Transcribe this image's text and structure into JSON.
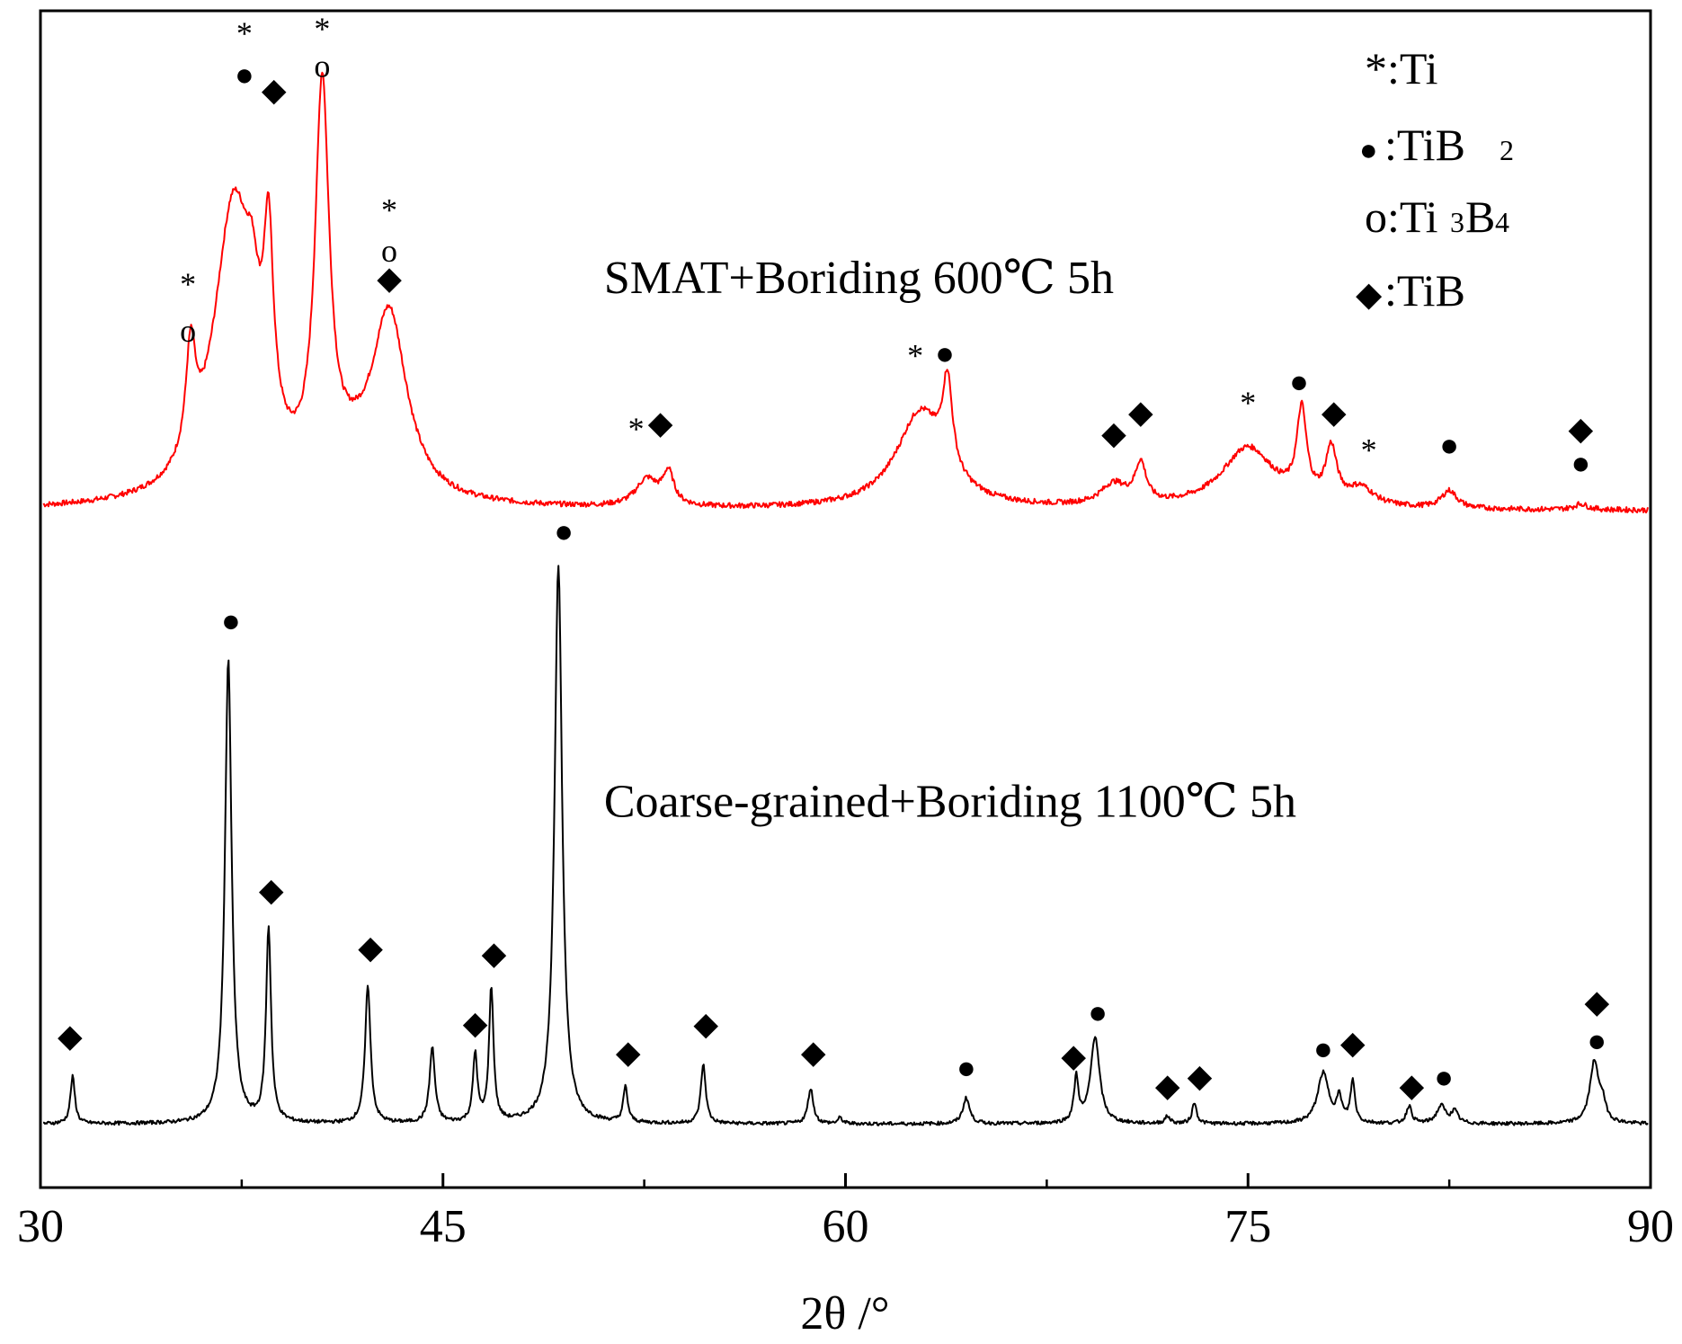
{
  "chart_data": {
    "type": "line",
    "xlabel": "2θ /°",
    "ylabel": "",
    "xlim": [
      30,
      90
    ],
    "ylim": [
      0,
      100
    ],
    "x_ticks": [
      30,
      45,
      60,
      75,
      90
    ],
    "x_tick_labels": [
      "30",
      "45",
      "60",
      "75",
      "90"
    ],
    "grid": false,
    "legend": {
      "placement": "top-right",
      "entries": [
        {
          "symbol": "*",
          "label": ":Ti"
        },
        {
          "symbol": "●",
          "label": ":TiB",
          "sub": "2"
        },
        {
          "symbol": "o",
          "label": ":Ti",
          "sub": "3",
          "label2": "B",
          "sub2": "4"
        },
        {
          "symbol": "◆",
          "label": ":TiB"
        }
      ]
    },
    "series": [
      {
        "name": "SMAT+Boriding 600℃ 5h",
        "color": "#ff0000",
        "baseline": 57.5,
        "peaks": [
          {
            "x": 35.6,
            "h": 9,
            "w": 0.22
          },
          {
            "x": 37.2,
            "h": 25,
            "w": 0.9
          },
          {
            "x": 37.9,
            "h": 6,
            "w": 0.3
          },
          {
            "x": 38.5,
            "h": 16,
            "w": 0.22
          },
          {
            "x": 40.5,
            "h": 33,
            "w": 0.32
          },
          {
            "x": 41.6,
            "h": 2,
            "w": 1.0
          },
          {
            "x": 43.0,
            "h": 15.5,
            "w": 0.8
          },
          {
            "x": 52.6,
            "h": 2.3,
            "w": 0.5
          },
          {
            "x": 53.4,
            "h": 2.7,
            "w": 0.25
          },
          {
            "x": 62.8,
            "h": 8.2,
            "w": 1.1
          },
          {
            "x": 63.8,
            "h": 7.5,
            "w": 0.22
          },
          {
            "x": 70.0,
            "h": 1.8,
            "w": 0.6
          },
          {
            "x": 71.0,
            "h": 3.3,
            "w": 0.25
          },
          {
            "x": 75.0,
            "h": 5.2,
            "w": 1.2
          },
          {
            "x": 77.0,
            "h": 7.4,
            "w": 0.22
          },
          {
            "x": 78.1,
            "h": 4.5,
            "w": 0.25
          },
          {
            "x": 79.2,
            "h": 1.5,
            "w": 0.6
          },
          {
            "x": 82.5,
            "h": 1.5,
            "w": 0.35
          },
          {
            "x": 87.4,
            "h": 0.5,
            "w": 0.3
          }
        ],
        "markers": [
          {
            "x": 35.5,
            "y": 76.5,
            "symbol": "*"
          },
          {
            "x": 35.5,
            "y": 72.5,
            "symbol": "o"
          },
          {
            "x": 37.6,
            "y": 97.8,
            "symbol": "*"
          },
          {
            "x": 37.6,
            "y": 94.3,
            "symbol": "●"
          },
          {
            "x": 38.7,
            "y": 93.0,
            "symbol": "◆"
          },
          {
            "x": 40.5,
            "y": 98.2,
            "symbol": "*"
          },
          {
            "x": 40.5,
            "y": 95.0,
            "symbol": "o"
          },
          {
            "x": 43.0,
            "y": 82.8,
            "symbol": "*"
          },
          {
            "x": 43.0,
            "y": 79.3,
            "symbol": "o"
          },
          {
            "x": 43.0,
            "y": 77.0,
            "symbol": "◆"
          },
          {
            "x": 52.2,
            "y": 64.2,
            "symbol": "*"
          },
          {
            "x": 53.1,
            "y": 64.7,
            "symbol": "◆"
          },
          {
            "x": 62.6,
            "y": 70.4,
            "symbol": "*"
          },
          {
            "x": 63.7,
            "y": 70.6,
            "symbol": "●"
          },
          {
            "x": 70.0,
            "y": 63.8,
            "symbol": "◆"
          },
          {
            "x": 71.0,
            "y": 65.6,
            "symbol": "◆"
          },
          {
            "x": 75.0,
            "y": 66.4,
            "symbol": "*"
          },
          {
            "x": 76.9,
            "y": 68.2,
            "symbol": "●"
          },
          {
            "x": 78.2,
            "y": 65.6,
            "symbol": "◆"
          },
          {
            "x": 79.5,
            "y": 62.4,
            "symbol": "*"
          },
          {
            "x": 82.5,
            "y": 62.8,
            "symbol": "●"
          },
          {
            "x": 87.4,
            "y": 64.2,
            "symbol": "◆"
          },
          {
            "x": 87.4,
            "y": 61.3,
            "symbol": "●"
          }
        ]
      },
      {
        "name": "Coarse-grained+Boriding 1100℃ 5h",
        "color": "#000000",
        "baseline": 5.4,
        "peaks": [
          {
            "x": 31.2,
            "h": 4.0,
            "w": 0.1
          },
          {
            "x": 37.0,
            "h": 39.5,
            "w": 0.15
          },
          {
            "x": 38.5,
            "h": 16.5,
            "w": 0.11
          },
          {
            "x": 42.2,
            "h": 11.8,
            "w": 0.12
          },
          {
            "x": 44.6,
            "h": 6.4,
            "w": 0.12
          },
          {
            "x": 46.2,
            "h": 5.8,
            "w": 0.1
          },
          {
            "x": 46.8,
            "h": 11.4,
            "w": 0.1
          },
          {
            "x": 49.3,
            "h": 47.5,
            "w": 0.17
          },
          {
            "x": 51.8,
            "h": 3.0,
            "w": 0.1
          },
          {
            "x": 54.7,
            "h": 5.0,
            "w": 0.11
          },
          {
            "x": 58.7,
            "h": 3.0,
            "w": 0.12
          },
          {
            "x": 59.8,
            "h": 0.5,
            "w": 0.1
          },
          {
            "x": 64.5,
            "h": 2.2,
            "w": 0.15
          },
          {
            "x": 68.6,
            "h": 3.8,
            "w": 0.1
          },
          {
            "x": 69.3,
            "h": 7.4,
            "w": 0.2
          },
          {
            "x": 72.0,
            "h": 0.6,
            "w": 0.12
          },
          {
            "x": 73.0,
            "h": 1.8,
            "w": 0.1
          },
          {
            "x": 77.8,
            "h": 4.3,
            "w": 0.25
          },
          {
            "x": 78.4,
            "h": 2.0,
            "w": 0.12
          },
          {
            "x": 78.9,
            "h": 3.5,
            "w": 0.1
          },
          {
            "x": 81.0,
            "h": 1.5,
            "w": 0.12
          },
          {
            "x": 82.2,
            "h": 1.5,
            "w": 0.2
          },
          {
            "x": 82.7,
            "h": 1.0,
            "w": 0.15
          },
          {
            "x": 87.9,
            "h": 5.1,
            "w": 0.2
          },
          {
            "x": 88.2,
            "h": 1.5,
            "w": 0.15
          }
        ],
        "markers": [
          {
            "x": 31.1,
            "y": 12.6,
            "symbol": "◆"
          },
          {
            "x": 37.1,
            "y": 47.9,
            "symbol": "●"
          },
          {
            "x": 38.6,
            "y": 25.0,
            "symbol": "◆"
          },
          {
            "x": 42.3,
            "y": 20.1,
            "symbol": "◆"
          },
          {
            "x": 46.2,
            "y": 13.7,
            "symbol": "◆"
          },
          {
            "x": 46.9,
            "y": 19.6,
            "symbol": "◆"
          },
          {
            "x": 49.5,
            "y": 55.5,
            "symbol": "●"
          },
          {
            "x": 51.9,
            "y": 11.2,
            "symbol": "◆"
          },
          {
            "x": 54.8,
            "y": 13.6,
            "symbol": "◆"
          },
          {
            "x": 58.8,
            "y": 11.2,
            "symbol": "◆"
          },
          {
            "x": 64.5,
            "y": 9.9,
            "symbol": "●"
          },
          {
            "x": 68.5,
            "y": 10.9,
            "symbol": "◆"
          },
          {
            "x": 69.4,
            "y": 14.6,
            "symbol": "●"
          },
          {
            "x": 72.0,
            "y": 8.4,
            "symbol": "◆"
          },
          {
            "x": 73.2,
            "y": 9.2,
            "symbol": "◆"
          },
          {
            "x": 77.8,
            "y": 11.5,
            "symbol": "●"
          },
          {
            "x": 78.9,
            "y": 12.0,
            "symbol": "◆"
          },
          {
            "x": 81.1,
            "y": 8.4,
            "symbol": "◆"
          },
          {
            "x": 82.3,
            "y": 9.1,
            "symbol": "●"
          },
          {
            "x": 88.0,
            "y": 15.5,
            "symbol": "◆"
          },
          {
            "x": 88.0,
            "y": 12.2,
            "symbol": "●"
          }
        ]
      }
    ],
    "annotations": [
      {
        "text": "SMAT+Boriding 600℃ 5h",
        "x": 51.0,
        "y": 76.0
      },
      {
        "text": "Coarse-grained+Boriding 1100℃ 5h",
        "x": 51.0,
        "y": 31.5
      }
    ]
  }
}
